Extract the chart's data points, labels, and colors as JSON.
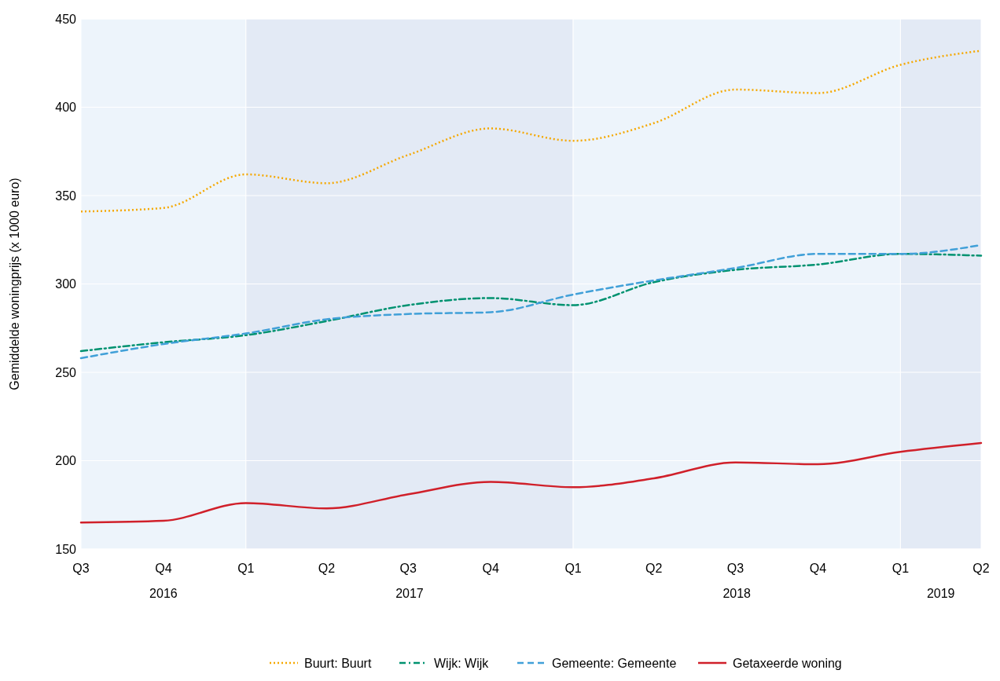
{
  "chart_data": {
    "type": "line",
    "ylabel": "Gemiddelde woningprijs (x 1000 euro)",
    "x": [
      "2016-07",
      "2016-10",
      "2017-01",
      "2017-04",
      "2017-07",
      "2017-10",
      "2018-01",
      "2018-04",
      "2018-07",
      "2018-10",
      "2019-01",
      "2019-04"
    ],
    "xlim": [
      "2016-07",
      "2019-04"
    ],
    "xticks": [
      {
        "value": "2016-07",
        "label": "Q3"
      },
      {
        "value": "2016-10",
        "label": "Q4"
      },
      {
        "value": "2017-01",
        "label": "Q1"
      },
      {
        "value": "2017-04",
        "label": "Q2"
      },
      {
        "value": "2017-07",
        "label": "Q3"
      },
      {
        "value": "2017-10",
        "label": "Q4"
      },
      {
        "value": "2018-01",
        "label": "Q1"
      },
      {
        "value": "2018-04",
        "label": "Q2"
      },
      {
        "value": "2018-07",
        "label": "Q3"
      },
      {
        "value": "2018-10",
        "label": "Q4"
      },
      {
        "value": "2019-01",
        "label": "Q1"
      },
      {
        "value": "2019-04",
        "label": "Q2"
      }
    ],
    "ylim": [
      150,
      450
    ],
    "yticks": [
      150,
      200,
      250,
      300,
      350,
      400,
      450
    ],
    "grid": "y",
    "legend": "bottom",
    "bands": [
      {
        "axis": "x",
        "from": "2016-07",
        "to": "2017-01",
        "label": "2016",
        "color": "#edf4fb"
      },
      {
        "axis": "x",
        "from": "2017-01",
        "to": "2018-01",
        "label": "2017",
        "color": "#e3eaf5"
      },
      {
        "axis": "x",
        "from": "2018-01",
        "to": "2019-01",
        "label": "2018",
        "color": "#edf4fb"
      },
      {
        "axis": "x",
        "from": "2019-01",
        "to": "2019-04",
        "label": "2019",
        "color": "#e3eaf5"
      }
    ],
    "series": [
      {
        "name": "Buurt: Buurt",
        "color": "#f5a800",
        "line_style": "dotted",
        "values": [
          341,
          343,
          362,
          357,
          373,
          388,
          381,
          391,
          410,
          408,
          424,
          432
        ]
      },
      {
        "name": "Wijk: Wijk",
        "color": "#009270",
        "line_style": "dashdot",
        "values": [
          262,
          267,
          271,
          279,
          288,
          292,
          288,
          301,
          308,
          311,
          317,
          316
        ]
      },
      {
        "name": "Gemeente: Gemeente",
        "color": "#41a0d8",
        "line_style": "dashed",
        "values": [
          258,
          266,
          272,
          280,
          283,
          284,
          294,
          302,
          309,
          317,
          317,
          322
        ]
      },
      {
        "name": "Getaxeerde woning",
        "color": "#d0202a",
        "line_style": "solid",
        "values": [
          165,
          166,
          176,
          173,
          181,
          188,
          185,
          190,
          199,
          198,
          205,
          210
        ]
      }
    ]
  }
}
